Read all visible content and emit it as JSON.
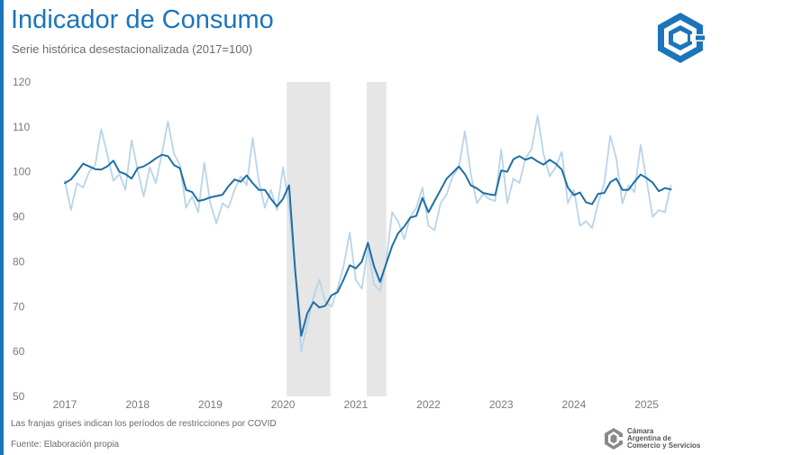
{
  "header": {
    "title": "Indicador de Consumo",
    "subtitle": "Serie histórica desestacionalizada (2017=100)",
    "logo_icon": "cac-hexagon-logo-icon"
  },
  "footer": {
    "note": "Las franjas grises indican los períodos de restricciones por COVID",
    "source": "Fuente: Elaboración propia",
    "org_name": "Cámara\nArgentina de\nComercio y Servicios",
    "org_icon": "cac-small-logo-icon"
  },
  "colors": {
    "accent": "#1b75bb",
    "series_main": "#1f6fa3",
    "series_raw": "#b9d4ea",
    "covid_band": "#e6e6e6"
  },
  "chart_data": {
    "type": "line",
    "title": "Indicador de Consumo",
    "subtitle": "Serie histórica desestacionalizada (2017=100)",
    "xlabel": "",
    "ylabel": "",
    "ylim": [
      50,
      120
    ],
    "yticks": [
      50,
      60,
      70,
      80,
      90,
      100,
      110,
      120
    ],
    "xlim": [
      2017,
      2025.5
    ],
    "xticks": [
      "2017",
      "2018",
      "2019",
      "2020",
      "2021",
      "2022",
      "2023",
      "2024",
      "2025"
    ],
    "grid": false,
    "legend": "none",
    "shaded_periods": [
      {
        "start": 2020.05,
        "end": 2020.65
      },
      {
        "start": 2021.15,
        "end": 2021.42
      }
    ],
    "series": [
      {
        "role": "seasonally-adjusted",
        "x": [
          2017.0,
          2017.083,
          2017.167,
          2017.25,
          2017.333,
          2017.417,
          2017.5,
          2017.583,
          2017.667,
          2017.75,
          2017.833,
          2017.917,
          2018.0,
          2018.083,
          2018.167,
          2018.25,
          2018.333,
          2018.417,
          2018.5,
          2018.583,
          2018.667,
          2018.75,
          2018.833,
          2018.917,
          2019.0,
          2019.083,
          2019.167,
          2019.25,
          2019.333,
          2019.417,
          2019.5,
          2019.583,
          2019.667,
          2019.75,
          2019.833,
          2019.917,
          2020.0,
          2020.083,
          2020.167,
          2020.25,
          2020.333,
          2020.417,
          2020.5,
          2020.583,
          2020.667,
          2020.75,
          2020.833,
          2020.917,
          2021.0,
          2021.083,
          2021.167,
          2021.25,
          2021.333,
          2021.417,
          2021.5,
          2021.583,
          2021.667,
          2021.75,
          2021.833,
          2021.917,
          2022.0,
          2022.083,
          2022.167,
          2022.25,
          2022.333,
          2022.417,
          2022.5,
          2022.583,
          2022.667,
          2022.75,
          2022.833,
          2022.917,
          2023.0,
          2023.083,
          2023.167,
          2023.25,
          2023.333,
          2023.417,
          2023.5,
          2023.583,
          2023.667,
          2023.75,
          2023.833,
          2023.917,
          2024.0,
          2024.083,
          2024.167,
          2024.25,
          2024.333,
          2024.417,
          2024.5,
          2024.583,
          2024.667,
          2024.75,
          2024.833,
          2024.917,
          2025.0,
          2025.083,
          2025.167,
          2025.25,
          2025.333
        ],
        "values": [
          97.5,
          98.3,
          100.0,
          101.8,
          101.2,
          100.6,
          100.5,
          101.2,
          102.5,
          100.0,
          99.5,
          98.5,
          100.8,
          101.2,
          102.0,
          103.0,
          103.8,
          103.5,
          101.5,
          100.8,
          96.0,
          95.5,
          93.5,
          93.8,
          94.3,
          94.6,
          94.9,
          96.8,
          98.3,
          97.8,
          99.2,
          97.5,
          96.0,
          96.0,
          94.0,
          92.3,
          94.0,
          97.0,
          78.0,
          63.5,
          68.5,
          71.0,
          69.8,
          70.2,
          72.5,
          73.2,
          76.0,
          79.2,
          78.5,
          80.0,
          84.2,
          79.0,
          75.5,
          79.5,
          83.5,
          86.3,
          87.8,
          89.8,
          90.2,
          94.2,
          91.0,
          93.5,
          96.0,
          98.5,
          99.8,
          101.2,
          99.5,
          97.0,
          96.3,
          95.3,
          95.0,
          94.8,
          100.3,
          100.0,
          102.8,
          103.5,
          102.7,
          103.2,
          102.3,
          101.6,
          102.7,
          101.8,
          100.5,
          96.5,
          94.8,
          95.4,
          93.2,
          92.8,
          95.1,
          95.3,
          97.7,
          98.5,
          96.0,
          96.0,
          97.8,
          99.4,
          98.6,
          97.6,
          95.7,
          96.4,
          96.1
        ]
      },
      {
        "role": "original",
        "x": [
          2017.0,
          2017.083,
          2017.167,
          2017.25,
          2017.333,
          2017.417,
          2017.5,
          2017.583,
          2017.667,
          2017.75,
          2017.833,
          2017.917,
          2018.0,
          2018.083,
          2018.167,
          2018.25,
          2018.333,
          2018.417,
          2018.5,
          2018.583,
          2018.667,
          2018.75,
          2018.833,
          2018.917,
          2019.0,
          2019.083,
          2019.167,
          2019.25,
          2019.333,
          2019.417,
          2019.5,
          2019.583,
          2019.667,
          2019.75,
          2019.833,
          2019.917,
          2020.0,
          2020.083,
          2020.167,
          2020.25,
          2020.333,
          2020.417,
          2020.5,
          2020.583,
          2020.667,
          2020.75,
          2020.833,
          2020.917,
          2021.0,
          2021.083,
          2021.167,
          2021.25,
          2021.333,
          2021.417,
          2021.5,
          2021.583,
          2021.667,
          2021.75,
          2021.833,
          2021.917,
          2022.0,
          2022.083,
          2022.167,
          2022.25,
          2022.333,
          2022.417,
          2022.5,
          2022.583,
          2022.667,
          2022.75,
          2022.833,
          2022.917,
          2023.0,
          2023.083,
          2023.167,
          2023.25,
          2023.333,
          2023.417,
          2023.5,
          2023.583,
          2023.667,
          2023.75,
          2023.833,
          2023.917,
          2024.0,
          2024.083,
          2024.167,
          2024.25,
          2024.333,
          2024.417,
          2024.5,
          2024.583,
          2024.667,
          2024.75,
          2024.833,
          2024.917,
          2025.0,
          2025.083,
          2025.167,
          2025.25,
          2025.333
        ],
        "values": [
          98.0,
          91.5,
          97.5,
          96.5,
          100.0,
          101.5,
          109.5,
          104.0,
          98.0,
          99.5,
          96.0,
          107.0,
          100.5,
          94.5,
          101.0,
          97.5,
          104.0,
          111.2,
          104.0,
          101.5,
          92.0,
          94.5,
          91.0,
          102.0,
          93.0,
          88.5,
          93.0,
          92.0,
          96.0,
          99.0,
          97.0,
          107.5,
          98.0,
          92.0,
          96.0,
          91.5,
          101.0,
          92.0,
          78.0,
          60.0,
          66.0,
          72.0,
          76.0,
          71.0,
          70.0,
          74.0,
          79.0,
          86.5,
          76.0,
          74.0,
          83.0,
          75.0,
          73.5,
          80.0,
          91.0,
          89.0,
          85.0,
          90.0,
          92.0,
          96.5,
          88.0,
          87.0,
          93.0,
          95.0,
          99.0,
          101.0,
          109.0,
          99.5,
          93.0,
          95.0,
          94.0,
          93.5,
          105.0,
          93.0,
          98.5,
          97.5,
          103.0,
          105.0,
          112.5,
          104.0,
          99.0,
          101.0,
          104.5,
          93.0,
          96.0,
          88.0,
          89.0,
          87.5,
          93.0,
          97.5,
          108.0,
          103.0,
          93.0,
          97.0,
          95.5,
          106.0,
          98.0,
          90.0,
          91.5,
          91.0,
          97.0
        ]
      }
    ]
  }
}
